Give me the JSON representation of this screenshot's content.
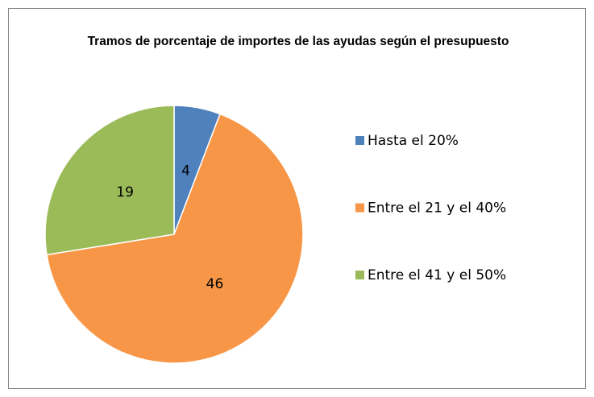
{
  "chart_data": {
    "type": "pie",
    "title": "Tramos de porcentaje de importes de las ayudas según el presupuesto",
    "categories": [
      "Hasta el 20%",
      "Entre el 21 y el 40%",
      "Entre el 41 y el 50%"
    ],
    "values": [
      4,
      46,
      19
    ],
    "colors": [
      "#4f81bd",
      "#f79646",
      "#9bbb59"
    ],
    "legend": "right"
  }
}
